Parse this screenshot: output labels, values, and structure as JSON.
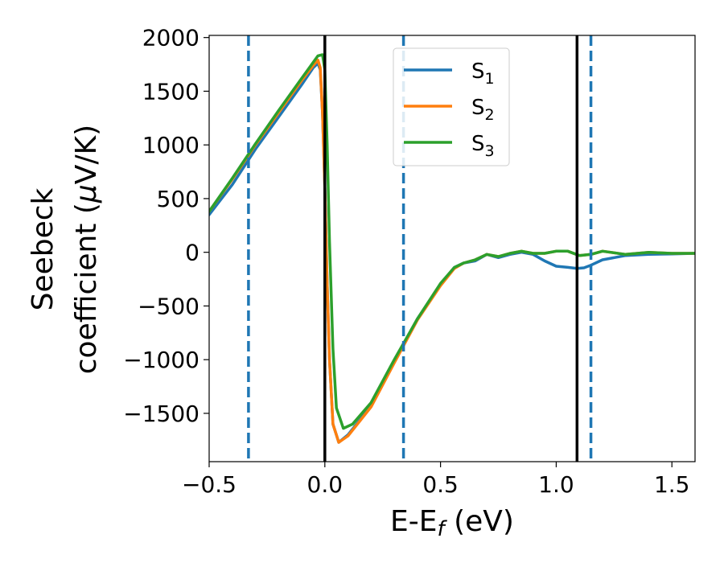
{
  "chart_data": {
    "type": "line",
    "xlabel": "E-E",
    "xlabel_sub": "f",
    "xlabel_unit": " (eV)",
    "ylabel_line1": "Seebeck",
    "ylabel_line2_pre": "coefficient  (",
    "ylabel_mu": "μ",
    "ylabel_line2_post": "V/K)",
    "xlim": [
      -0.5,
      1.6
    ],
    "ylim": [
      -1950,
      2020
    ],
    "xticks": [
      -0.5,
      0.0,
      0.5,
      1.0,
      1.5
    ],
    "xtick_labels": [
      "−0.5",
      "0.0",
      "0.5",
      "1.0",
      "1.5"
    ],
    "yticks": [
      -1500,
      -1000,
      -500,
      0,
      500,
      1000,
      1500,
      2000
    ],
    "ytick_labels": [
      "−1500",
      "−1000",
      "−500",
      "0",
      "500",
      "1000",
      "1500",
      "2000"
    ],
    "grid": false,
    "legend_position": "top-center",
    "vlines_solid": {
      "color": "#000000",
      "x": [
        0.0,
        1.09
      ]
    },
    "vlines_dashed": {
      "color": "#1f77b4",
      "x": [
        -0.33,
        0.34,
        1.15
      ]
    },
    "series": [
      {
        "name": "S",
        "sub": "1",
        "color": "#1f77b4",
        "points": [
          [
            -0.5,
            350
          ],
          [
            -0.4,
            630
          ],
          [
            -0.3,
            960
          ],
          [
            -0.2,
            1260
          ],
          [
            -0.1,
            1560
          ],
          [
            -0.05,
            1720
          ],
          [
            -0.03,
            1760
          ],
          [
            -0.02,
            1700
          ],
          [
            -0.01,
            1300
          ],
          [
            0.0,
            600
          ],
          [
            0.01,
            -300
          ],
          [
            0.02,
            -1000
          ],
          [
            0.035,
            -1600
          ],
          [
            0.06,
            -1770
          ],
          [
            0.1,
            -1700
          ],
          [
            0.2,
            -1430
          ],
          [
            0.3,
            -1020
          ],
          [
            0.4,
            -620
          ],
          [
            0.5,
            -300
          ],
          [
            0.56,
            -140
          ],
          [
            0.6,
            -100
          ],
          [
            0.65,
            -80
          ],
          [
            0.7,
            -20
          ],
          [
            0.75,
            -50
          ],
          [
            0.8,
            -20
          ],
          [
            0.85,
            0
          ],
          [
            0.9,
            -20
          ],
          [
            0.95,
            -80
          ],
          [
            1.0,
            -130
          ],
          [
            1.05,
            -140
          ],
          [
            1.09,
            -150
          ],
          [
            1.12,
            -145
          ],
          [
            1.15,
            -120
          ],
          [
            1.2,
            -70
          ],
          [
            1.3,
            -30
          ],
          [
            1.4,
            -20
          ],
          [
            1.5,
            -15
          ],
          [
            1.6,
            -10
          ]
        ]
      },
      {
        "name": "S",
        "sub": "2",
        "color": "#ff7f0e",
        "points": [
          [
            -0.5,
            380
          ],
          [
            -0.4,
            680
          ],
          [
            -0.3,
            1000
          ],
          [
            -0.2,
            1300
          ],
          [
            -0.1,
            1600
          ],
          [
            -0.05,
            1740
          ],
          [
            -0.03,
            1790
          ],
          [
            -0.02,
            1720
          ],
          [
            -0.01,
            1300
          ],
          [
            0.0,
            600
          ],
          [
            0.01,
            -300
          ],
          [
            0.02,
            -1000
          ],
          [
            0.035,
            -1600
          ],
          [
            0.06,
            -1770
          ],
          [
            0.1,
            -1710
          ],
          [
            0.2,
            -1440
          ],
          [
            0.3,
            -1030
          ],
          [
            0.4,
            -630
          ],
          [
            0.5,
            -310
          ],
          [
            0.56,
            -150
          ],
          [
            0.6,
            -100
          ],
          [
            0.65,
            -70
          ],
          [
            0.7,
            -20
          ],
          [
            0.75,
            -40
          ],
          [
            0.8,
            -10
          ],
          [
            0.85,
            10
          ],
          [
            0.9,
            -10
          ],
          [
            0.95,
            -10
          ],
          [
            1.0,
            10
          ],
          [
            1.05,
            10
          ],
          [
            1.1,
            -30
          ],
          [
            1.15,
            -20
          ],
          [
            1.2,
            10
          ],
          [
            1.3,
            -20
          ],
          [
            1.4,
            0
          ],
          [
            1.5,
            -10
          ],
          [
            1.6,
            -10
          ]
        ]
      },
      {
        "name": "S",
        "sub": "3",
        "color": "#2ca02c",
        "points": [
          [
            -0.5,
            380
          ],
          [
            -0.4,
            690
          ],
          [
            -0.3,
            1010
          ],
          [
            -0.2,
            1320
          ],
          [
            -0.1,
            1620
          ],
          [
            -0.03,
            1830
          ],
          [
            -0.01,
            1840
          ],
          [
            0.0,
            1700
          ],
          [
            0.01,
            1000
          ],
          [
            0.02,
            100
          ],
          [
            0.035,
            -900
          ],
          [
            0.05,
            -1450
          ],
          [
            0.08,
            -1640
          ],
          [
            0.12,
            -1600
          ],
          [
            0.2,
            -1400
          ],
          [
            0.3,
            -1000
          ],
          [
            0.4,
            -620
          ],
          [
            0.5,
            -290
          ],
          [
            0.56,
            -140
          ],
          [
            0.6,
            -100
          ],
          [
            0.65,
            -70
          ],
          [
            0.7,
            -20
          ],
          [
            0.75,
            -40
          ],
          [
            0.8,
            -10
          ],
          [
            0.85,
            10
          ],
          [
            0.9,
            -10
          ],
          [
            0.95,
            -10
          ],
          [
            1.0,
            10
          ],
          [
            1.05,
            10
          ],
          [
            1.1,
            -30
          ],
          [
            1.15,
            -20
          ],
          [
            1.2,
            10
          ],
          [
            1.3,
            -20
          ],
          [
            1.4,
            0
          ],
          [
            1.5,
            -10
          ],
          [
            1.6,
            -10
          ]
        ]
      }
    ]
  }
}
